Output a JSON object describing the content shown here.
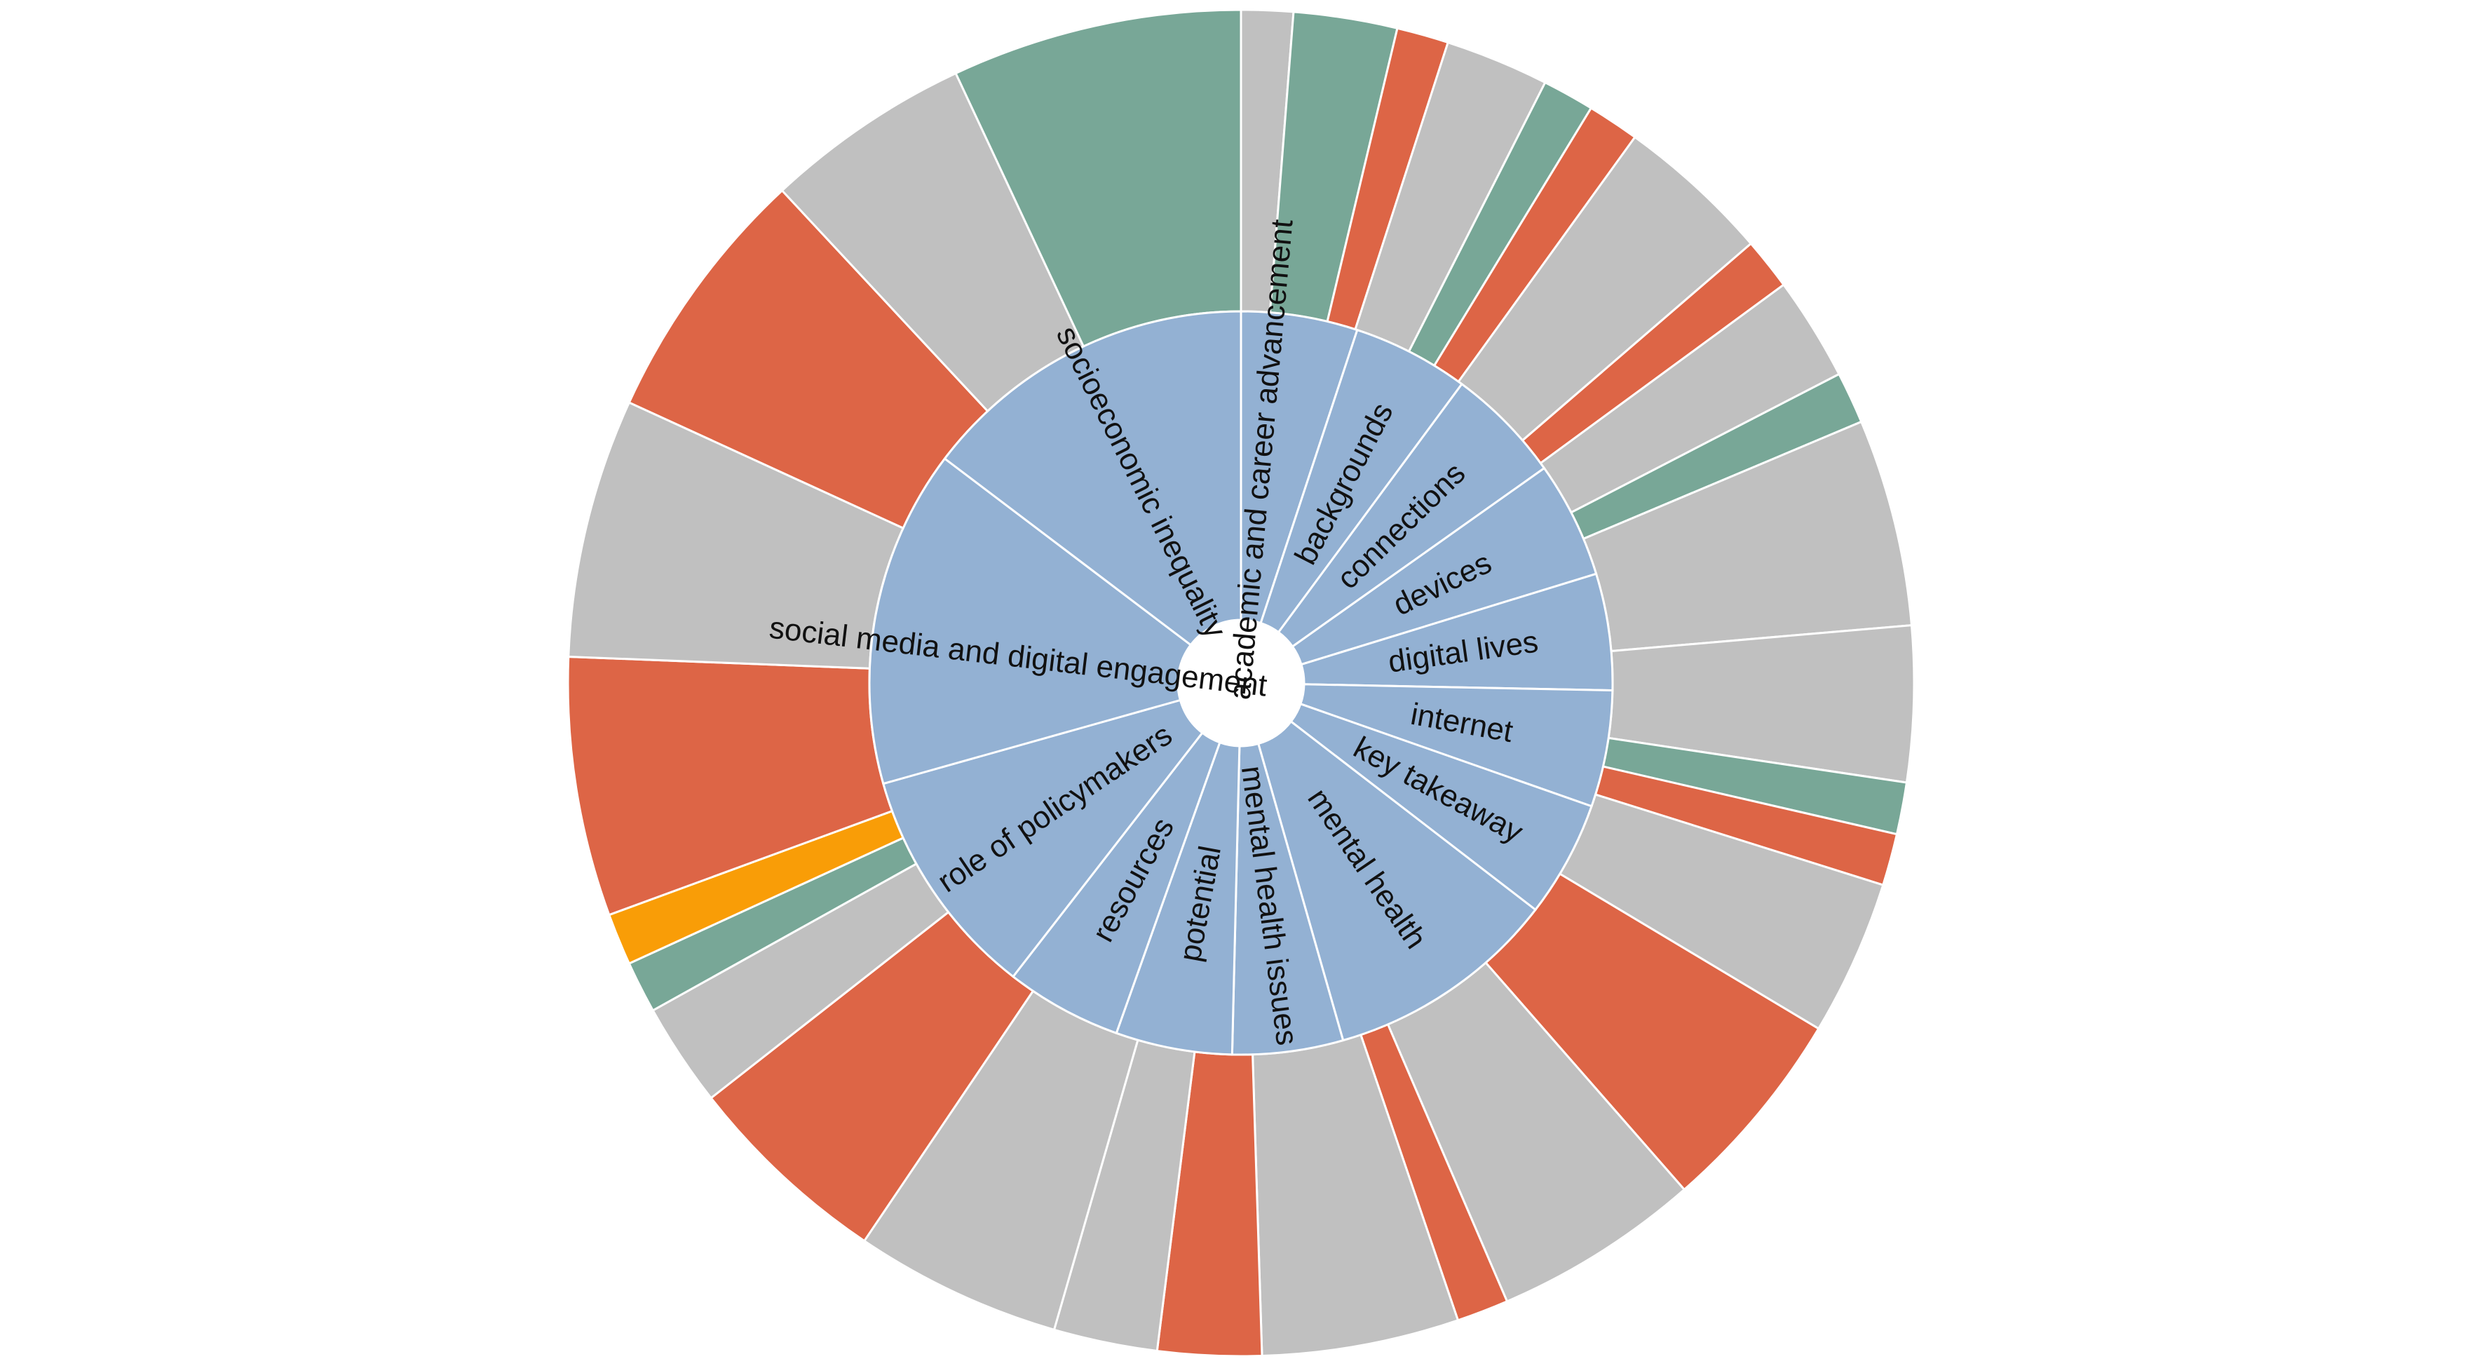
{
  "chart_data": {
    "type": "sunburst",
    "colors": {
      "inner": "#93b1d3",
      "gray": "#c0c0c0",
      "green": "#78a797",
      "red": "#dd6546",
      "orange": "#f99d07"
    },
    "inner": [
      {
        "label": "academic and career advancement",
        "value": 4.0,
        "label_offset": -4
      },
      {
        "label": "backgrounds",
        "value": 4.0,
        "label_offset": 0
      },
      {
        "label": "connections",
        "value": 4.0,
        "label_offset": 0
      },
      {
        "label": "devices",
        "value": 4.0,
        "label_offset": 0
      },
      {
        "label": "digital lives",
        "value": 4.0,
        "label_offset": 0
      },
      {
        "label": "internet",
        "value": 4.0,
        "label_offset": 0
      },
      {
        "label": "key takeaway",
        "value": 4.0,
        "label_offset": 0
      },
      {
        "label": "mental health",
        "value": 8.0,
        "label_offset": 0
      },
      {
        "label": "mental health issues",
        "value": 3.8,
        "label_offset": 0
      },
      {
        "label": "potential",
        "value": 4.0,
        "label_offset": 0
      },
      {
        "label": "resources",
        "value": 4.0,
        "label_offset": 0
      },
      {
        "label": "role of policymakers",
        "value": 8.0,
        "label_offset": 0
      },
      {
        "label": "social media and digital engagement",
        "value": 11.6,
        "label_offset": -4
      },
      {
        "label": "socioeconomic inequality",
        "value": 11.6,
        "label_offset": 0
      }
    ],
    "outer": [
      {
        "color": "gray",
        "value": 1.0
      },
      {
        "color": "green",
        "value": 2.0
      },
      {
        "color": "red",
        "value": 1.0
      },
      {
        "color": "gray",
        "value": 2.0
      },
      {
        "color": "green",
        "value": 1.0
      },
      {
        "color": "red",
        "value": 1.0
      },
      {
        "color": "gray",
        "value": 3.0
      },
      {
        "color": "red",
        "value": 1.0
      },
      {
        "color": "gray",
        "value": 2.0
      },
      {
        "color": "green",
        "value": 1.0
      },
      {
        "color": "gray",
        "value": 4.0
      },
      {
        "color": "gray",
        "value": 3.0
      },
      {
        "color": "green",
        "value": 1.0
      },
      {
        "color": "red",
        "value": 1.0
      },
      {
        "color": "gray",
        "value": 3.0
      },
      {
        "color": "red",
        "value": 4.0
      },
      {
        "color": "gray",
        "value": 4.0
      },
      {
        "color": "red",
        "value": 1.0
      },
      {
        "color": "gray",
        "value": 3.8
      },
      {
        "color": "red",
        "value": 2.0
      },
      {
        "color": "gray",
        "value": 2.0
      },
      {
        "color": "gray",
        "value": 4.0
      },
      {
        "color": "red",
        "value": 4.0
      },
      {
        "color": "gray",
        "value": 2.0
      },
      {
        "color": "green",
        "value": 1.0
      },
      {
        "color": "orange",
        "value": 1.0
      },
      {
        "color": "red",
        "value": 5.0
      },
      {
        "color": "gray",
        "value": 5.0
      },
      {
        "color": "red",
        "value": 5.0
      },
      {
        "color": "gray",
        "value": 4.0
      },
      {
        "color": "green",
        "value": 5.6
      }
    ]
  }
}
